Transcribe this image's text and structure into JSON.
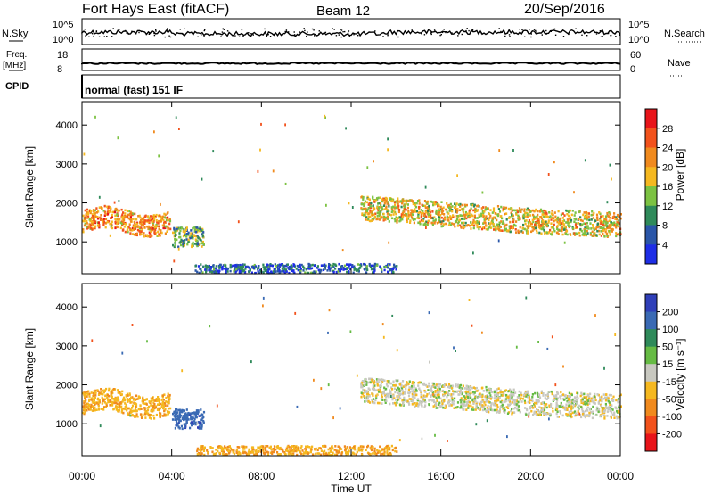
{
  "header": {
    "title": "Fort Hays East (fitACF)",
    "beam": "Beam 12",
    "date": "20/Sep/2016",
    "mode": "normal (fast) 151 IF"
  },
  "strips": {
    "nsky_label": "N.Sky",
    "nsearch_label": "N.Search",
    "freq_label": "Freq.",
    "freq_unit": "[MHz]",
    "nave_label": "Nave",
    "cpid_label": "CPID",
    "noise_ticks": [
      "10^5",
      "10^0"
    ],
    "freq_ticks": [
      "18",
      "8"
    ],
    "nave_ticks": [
      "60",
      "0"
    ]
  },
  "axes": {
    "y_label": "Slant Range [km]",
    "y_ticks": [
      "4000",
      "3000",
      "2000",
      "1000"
    ],
    "x_label": "Time UT",
    "x_ticks": [
      "00:00",
      "04:00",
      "08:00",
      "12:00",
      "16:00",
      "20:00",
      "00:00"
    ]
  },
  "power_scale": {
    "label": "Power [dB]",
    "ticks": [
      "28",
      "24",
      "20",
      "16",
      "12",
      "8",
      "4"
    ],
    "colors": [
      "#e8141a",
      "#f2521c",
      "#f08a1e",
      "#f5b820",
      "#7cc242",
      "#2f8a5a",
      "#2a56a8",
      "#1e2ee6"
    ]
  },
  "velocity_scale": {
    "label": "Velocity [m s⁻¹]",
    "ticks": [
      "200",
      "100",
      "50",
      "15",
      "-15",
      "-50",
      "-100",
      "-200"
    ],
    "colors": [
      "#2f3fb8",
      "#3a6ab4",
      "#2f8a5a",
      "#66bb44",
      "#c8c8c0",
      "#f5b820",
      "#f08a1e",
      "#f2521c",
      "#e8141a"
    ]
  },
  "chart_data": [
    {
      "type": "heatmap",
      "title": "Power",
      "x_range_hours": [
        0,
        24
      ],
      "y_range_km": [
        180,
        4600
      ],
      "colorbar_range_db": [
        0,
        32
      ],
      "regions": [
        {
          "t_start": 0.0,
          "t_end": 3.9,
          "range_center_km": 1650,
          "range_halfwidth_km": 280,
          "value_db": 22
        },
        {
          "t_start": 4.0,
          "t_end": 5.4,
          "range_center_km": 1150,
          "range_halfwidth_km": 250,
          "value_db": 12
        },
        {
          "t_start": 12.4,
          "t_end": 24.0,
          "range_center_km": 1600,
          "range_halfwidth_km": 320,
          "value_db": 18
        },
        {
          "t_start": 5.0,
          "t_end": 14.0,
          "range_center_km": 320,
          "range_halfwidth_km": 140,
          "value_db": 6
        }
      ]
    },
    {
      "type": "heatmap",
      "title": "Velocity",
      "x_range_hours": [
        0,
        24
      ],
      "y_range_km": [
        180,
        4600
      ],
      "colorbar_range_ms": [
        -250,
        250
      ],
      "regions": [
        {
          "t_start": 0.0,
          "t_end": 3.9,
          "range_center_km": 1650,
          "range_halfwidth_km": 280,
          "value_ms": -40
        },
        {
          "t_start": 4.0,
          "t_end": 5.4,
          "range_center_km": 1150,
          "range_halfwidth_km": 250,
          "value_ms": 180
        },
        {
          "t_start": 12.4,
          "t_end": 24.0,
          "range_center_km": 1600,
          "range_halfwidth_km": 320,
          "value_ms": 0
        },
        {
          "t_start": 5.0,
          "t_end": 14.0,
          "range_center_km": 320,
          "range_halfwidth_km": 140,
          "value_ms": -45
        }
      ]
    }
  ]
}
